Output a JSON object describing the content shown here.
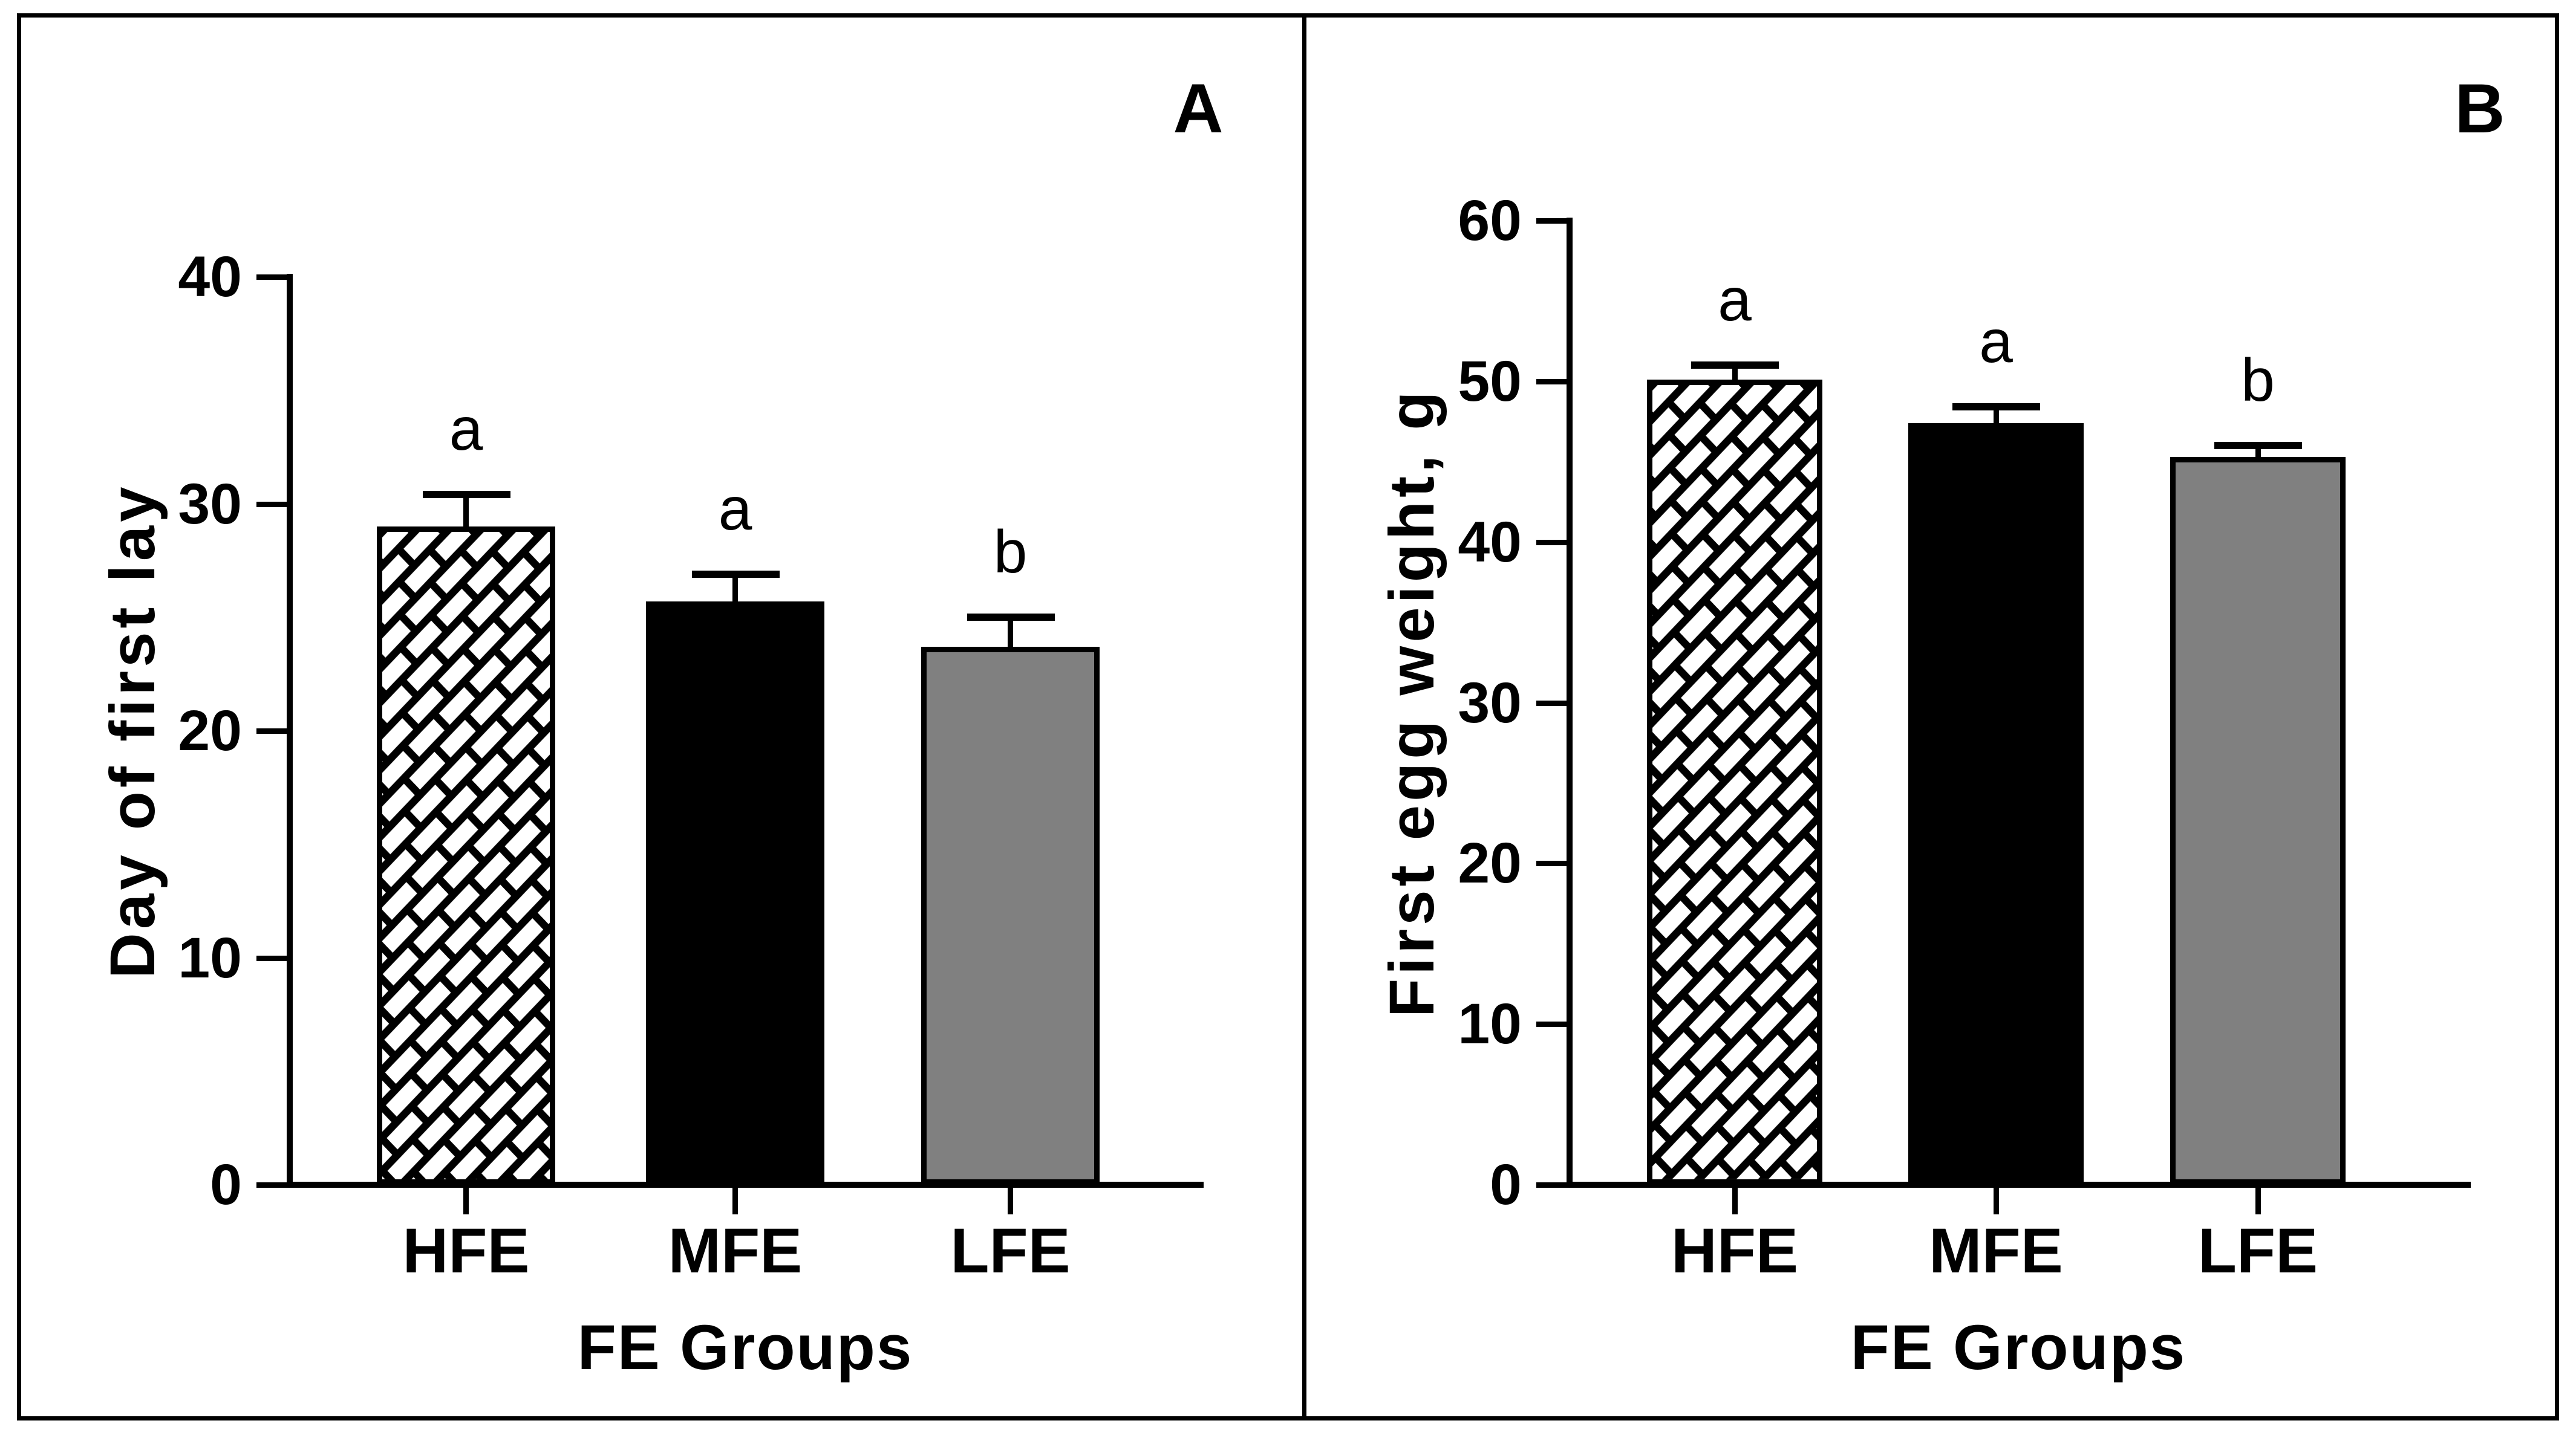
{
  "figure_title": "",
  "colors": {
    "background": "#ffffff",
    "axis": "#000000",
    "bar_black": "#000000",
    "bar_gray": "#808080",
    "hatch_foreground": "#000000",
    "hatch_background": "#ffffff"
  },
  "chart_data": [
    {
      "type": "bar",
      "panel_label": "A",
      "title": "",
      "xlabel": "FE Groups",
      "ylabel": "Day of first lay",
      "categories": [
        "HFE",
        "MFE",
        "LFE"
      ],
      "values": [
        29.0,
        25.7,
        23.7
      ],
      "errors_plus": [
        1.4,
        1.2,
        1.3
      ],
      "sig_letters": [
        "a",
        "a",
        "b"
      ],
      "ylim": [
        0,
        40
      ],
      "ytick_step": 10,
      "grid": false,
      "legend": "none",
      "bar_styles": [
        "hatched-diagonal-brick",
        "solid-black",
        "solid-gray"
      ]
    },
    {
      "type": "bar",
      "panel_label": "B",
      "title": "",
      "xlabel": "FE Groups",
      "ylabel": "First egg weight, g",
      "categories": [
        "HFE",
        "MFE",
        "LFE"
      ],
      "values": [
        50.1,
        47.4,
        45.3
      ],
      "errors_plus": [
        0.9,
        1.0,
        0.7
      ],
      "sig_letters": [
        "a",
        "a",
        "b"
      ],
      "ylim": [
        0,
        60
      ],
      "ytick_step": 10,
      "grid": false,
      "legend": "none",
      "bar_styles": [
        "hatched-diagonal-brick",
        "solid-black",
        "solid-gray"
      ]
    }
  ]
}
